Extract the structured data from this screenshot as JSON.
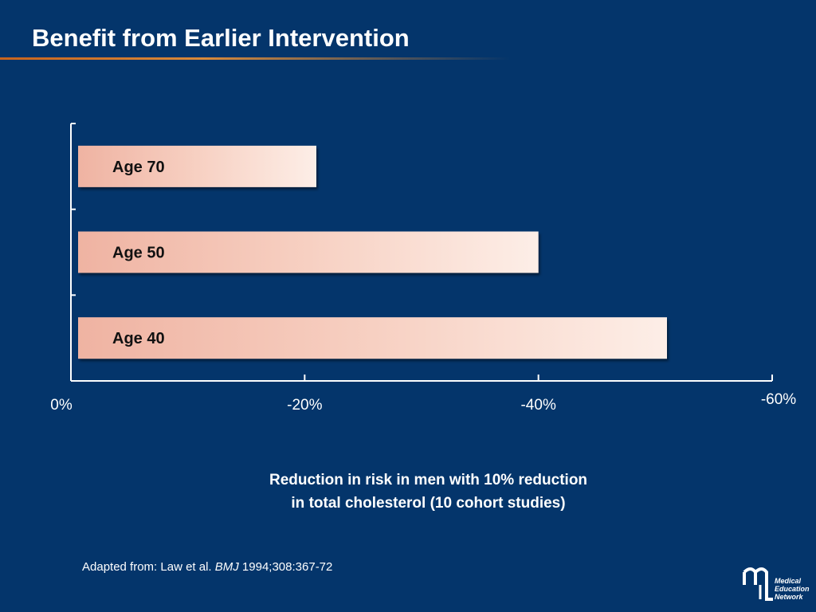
{
  "title": "Benefit from Earlier Intervention",
  "chart_data": {
    "type": "bar",
    "orientation": "horizontal",
    "categories": [
      "Age 70",
      "Age 50",
      "Age 40"
    ],
    "values": [
      -21,
      -40,
      -51
    ],
    "x_ticks": [
      {
        "value": 0,
        "label": "0%"
      },
      {
        "value": -20,
        "label": "-20%"
      },
      {
        "value": -40,
        "label": "-40%"
      },
      {
        "value": -60,
        "label": "-60%"
      }
    ],
    "xlim": [
      0,
      -60
    ],
    "grid": false,
    "bar_color": "#f4c2b2"
  },
  "caption": {
    "line1": "Reduction in risk in men with 10% reduction",
    "line2": "in total cholesterol (10 cohort studies)"
  },
  "citation": {
    "prefix": "Adapted from: Law et al. ",
    "journal": "BMJ",
    "suffix": " 1994;308:367-72"
  },
  "logo": {
    "line1": "Medical",
    "line2": "Education",
    "line3": "Network"
  }
}
